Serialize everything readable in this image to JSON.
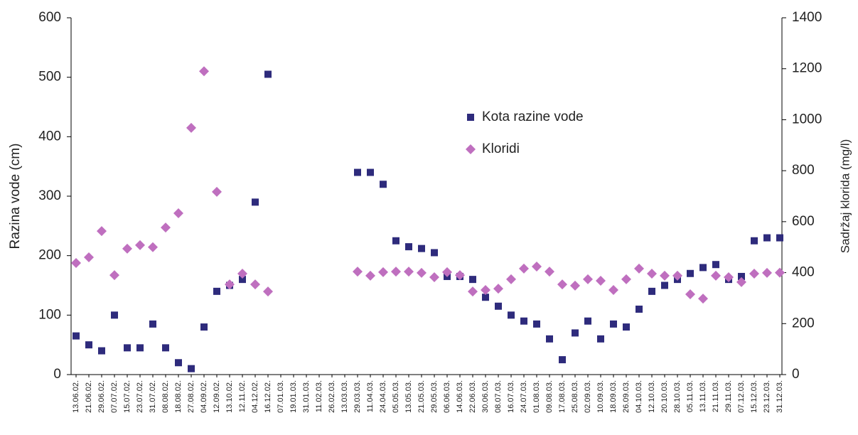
{
  "chart_data": {
    "type": "scatter",
    "categories": [
      "13.06.02.",
      "21.06.02.",
      "29.06.02.",
      "07.07.02.",
      "15.07.02.",
      "23.07.02.",
      "31.07.02.",
      "08.08.02.",
      "18.08.02.",
      "27.08.02.",
      "04.09.02.",
      "12.09.02.",
      "13.10.02.",
      "12.11.02.",
      "04.12.02.",
      "16.12.02.",
      "07.01.03.",
      "19.01.03.",
      "31.01.03.",
      "11.02.03.",
      "26.02.03.",
      "13.03.03.",
      "29.03.03.",
      "11.04.03.",
      "24.04.03.",
      "05.05.03.",
      "13.05.03.",
      "21.05.03.",
      "29.05.03.",
      "06.06.03.",
      "14.06.03.",
      "22.06.03.",
      "30.06.03.",
      "08.07.03.",
      "16.07.03.",
      "24.07.03.",
      "01.08.03.",
      "09.08.03.",
      "17.08.03.",
      "25.08.03.",
      "02.09.03.",
      "10.09.03.",
      "18.09.03.",
      "26.09.03.",
      "04.10.03.",
      "12.10.03.",
      "20.10.03.",
      "28.10.03.",
      "05.11.03.",
      "13.11.03.",
      "21.11.03.",
      "29.11.03.",
      "07.12.03.",
      "15.12.03.",
      "23.12.03.",
      "31.12.03."
    ],
    "series": [
      {
        "name": "Kota razine vode",
        "color": "#2e2b7c",
        "marker": "square",
        "values": [
          65,
          50,
          40,
          100,
          45,
          45,
          85,
          45,
          20,
          10,
          80,
          140,
          150,
          160,
          290,
          505,
          null,
          null,
          null,
          null,
          null,
          null,
          340,
          340,
          320,
          225,
          215,
          212,
          205,
          165,
          165,
          160,
          130,
          115,
          100,
          90,
          85,
          60,
          25,
          70,
          90,
          60,
          85,
          80,
          110,
          140,
          150,
          160,
          170,
          180,
          185,
          160,
          165,
          225,
          230,
          230
        ]
      },
      {
        "name": "Kloridi",
        "color": "#bf6fbf",
        "marker": "diamond",
        "axis": "y2",
        "values": [
          438,
          460,
          563,
          390,
          494,
          508,
          500,
          577,
          633,
          968,
          1190,
          717,
          354,
          396,
          354,
          326,
          null,
          null,
          null,
          null,
          null,
          null,
          404,
          388,
          402,
          404,
          404,
          399,
          382,
          402,
          390,
          326,
          332,
          337,
          374,
          416,
          424,
          404,
          354,
          349,
          374,
          368,
          332,
          374,
          416,
          396,
          388,
          388,
          315,
          298,
          388,
          382,
          363,
          396,
          399,
          400
        ]
      }
    ],
    "ylabel": "Razina vode (cm)",
    "y2label": "Sadržaj klorida (mg/l)",
    "ylim": [
      0,
      600
    ],
    "yticks": [
      0,
      100,
      200,
      300,
      400,
      500,
      600
    ],
    "y2lim": [
      0,
      1400
    ],
    "y2ticks": [
      0,
      200,
      400,
      600,
      800,
      1000,
      1200,
      1400
    ],
    "grid": false
  }
}
